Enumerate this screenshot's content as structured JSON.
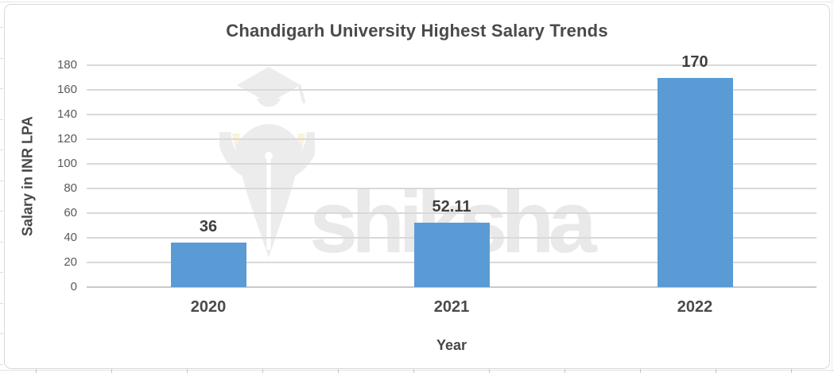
{
  "chart_data": {
    "type": "bar",
    "title": "Chandigarh University Highest Salary Trends",
    "xlabel": "Year",
    "ylabel": "Salary in INR LPA",
    "categories": [
      "2020",
      "2021",
      "2022"
    ],
    "values": [
      36,
      52.11,
      170
    ],
    "data_labels": [
      "36",
      "52.11",
      "170"
    ],
    "ylim": [
      0,
      180
    ],
    "yticks": [
      0,
      20,
      40,
      60,
      80,
      100,
      120,
      140,
      160,
      180
    ],
    "grid": true,
    "legend": "none",
    "bar_color": "#5B9BD5",
    "gridline_color": "#D9D9D9",
    "axis_line_color": "#C9C9C9",
    "title_color": "#4A4A4A",
    "data_label_color": "#3F3F3F",
    "category_label_color": "#4A4A4A",
    "tick_label_color": "#595959",
    "axis_title_color": "#474747"
  },
  "watermark": {
    "text": "shiksha",
    "icon": "shiksha-pen-nib-graduation-cap-icon",
    "text_color": "#E9E9E9",
    "icon_gray": "#ECECEC",
    "icon_yellow": "#FAF3DA"
  }
}
